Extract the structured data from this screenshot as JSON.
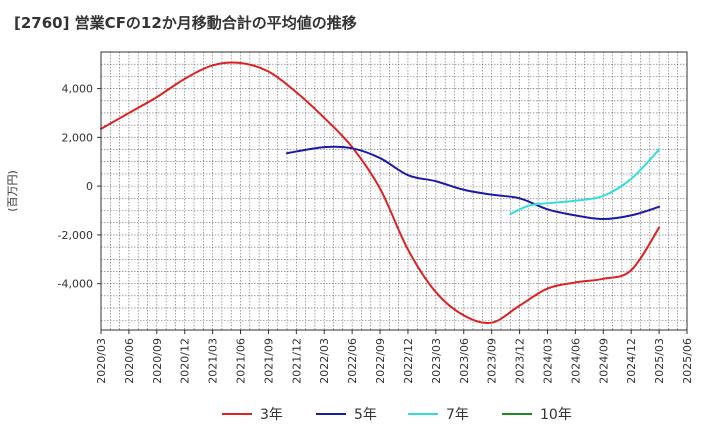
{
  "chart_data": {
    "type": "line",
    "title": "[2760]  営業CFの12か月移動合計の平均値の推移",
    "ylabel": "(百万円)",
    "xlabel": "",
    "ylim": [
      -5900,
      5500
    ],
    "yticks": [
      4000,
      2000,
      0,
      -2000,
      -4000
    ],
    "ytick_labels": [
      "4,000",
      "2,000",
      "0",
      "-2,000",
      "-4,000"
    ],
    "xticks": [
      "2020/03",
      "2020/06",
      "2020/09",
      "2020/12",
      "2021/03",
      "2021/06",
      "2021/09",
      "2021/12",
      "2022/03",
      "2022/06",
      "2022/09",
      "2022/12",
      "2023/03",
      "2023/06",
      "2023/09",
      "2023/12",
      "2024/03",
      "2024/06",
      "2024/09",
      "2024/12",
      "2025/03",
      "2025/06"
    ],
    "grid": true,
    "legend_position": "bottom",
    "series": [
      {
        "name": "3年",
        "color": "#dd2222",
        "points": [
          [
            "2020/03",
            2350
          ],
          [
            "2020/06",
            3000
          ],
          [
            "2020/09",
            3650
          ],
          [
            "2020/12",
            4400
          ],
          [
            "2021/03",
            4950
          ],
          [
            "2021/06",
            5050
          ],
          [
            "2021/09",
            4700
          ],
          [
            "2021/12",
            3850
          ],
          [
            "2022/03",
            2800
          ],
          [
            "2022/06",
            1600
          ],
          [
            "2022/09",
            -100
          ],
          [
            "2022/12",
            -2600
          ],
          [
            "2023/03",
            -4350
          ],
          [
            "2023/06",
            -5300
          ],
          [
            "2023/09",
            -5600
          ],
          [
            "2023/12",
            -4900
          ],
          [
            "2024/03",
            -4200
          ],
          [
            "2024/06",
            -3950
          ],
          [
            "2024/09",
            -3800
          ],
          [
            "2024/12",
            -3450
          ],
          [
            "2025/03",
            -1700
          ]
        ]
      },
      {
        "name": "5年",
        "color": "#1a1aaa",
        "points": [
          [
            "2021/11",
            1350
          ],
          [
            "2022/03",
            1600
          ],
          [
            "2022/06",
            1550
          ],
          [
            "2022/09",
            1150
          ],
          [
            "2022/12",
            450
          ],
          [
            "2023/03",
            200
          ],
          [
            "2023/06",
            -150
          ],
          [
            "2023/09",
            -350
          ],
          [
            "2023/12",
            -500
          ],
          [
            "2024/03",
            -950
          ],
          [
            "2024/06",
            -1200
          ],
          [
            "2024/09",
            -1350
          ],
          [
            "2024/12",
            -1200
          ],
          [
            "2025/03",
            -850
          ]
        ]
      },
      {
        "name": "7年",
        "color": "#33dddd",
        "points": [
          [
            "2023/11",
            -1150
          ],
          [
            "2024/01",
            -800
          ],
          [
            "2024/03",
            -700
          ],
          [
            "2024/06",
            -600
          ],
          [
            "2024/09",
            -400
          ],
          [
            "2024/12",
            300
          ],
          [
            "2025/03",
            1500
          ]
        ]
      },
      {
        "name": "10年",
        "color": "#228822",
        "points": []
      }
    ]
  }
}
